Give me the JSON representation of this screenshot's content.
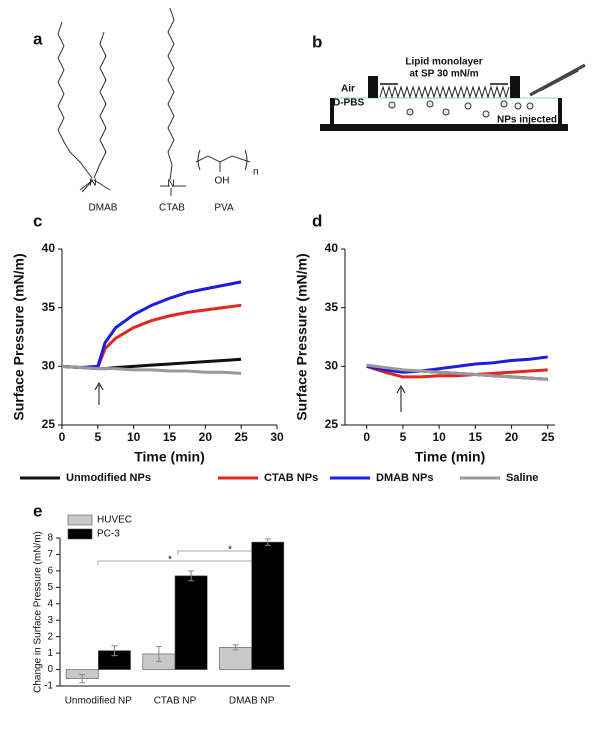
{
  "figure": {
    "panel_labels": [
      "a",
      "b",
      "c",
      "d",
      "e"
    ],
    "structures": [
      "DMAB",
      "CTAB",
      "PVA"
    ],
    "nitrogen": "N",
    "pva_group": "OH",
    "pva_subscript": "n",
    "schematic": {
      "title_lines": [
        "Lipid monolayer",
        "at SP 30 mN/m"
      ],
      "air": "Air",
      "buffer": "D-PBS",
      "injection": "NPs injected"
    }
  },
  "chart_data": [
    {
      "type": "line",
      "xlabel": "Time (min)",
      "ylabel": "Surface Pressure (mN/m)",
      "x": [
        0,
        2.5,
        5,
        6,
        7.5,
        10,
        12.5,
        15,
        17.5,
        20,
        22.5,
        25
      ],
      "xlim": [
        0,
        30
      ],
      "xticks": [
        0,
        5,
        10,
        15,
        20,
        25,
        30
      ],
      "ylim": [
        25,
        40
      ],
      "yticks": [
        25,
        30,
        35,
        40
      ],
      "series": [
        {
          "name": "Unmodified NPs",
          "color": "#111111",
          "values": [
            30,
            29.9,
            29.8,
            29.8,
            29.9,
            30.0,
            30.1,
            30.2,
            30.3,
            30.4,
            30.5,
            30.6
          ]
        },
        {
          "name": "CTAB NPs",
          "color": "#e0261e",
          "values": [
            30,
            29.9,
            29.9,
            31.5,
            32.4,
            33.3,
            33.9,
            34.3,
            34.6,
            34.8,
            35.0,
            35.2
          ]
        },
        {
          "name": "DMAB NPs",
          "color": "#1a1ee0",
          "values": [
            30,
            29.9,
            30.0,
            32.0,
            33.3,
            34.4,
            35.2,
            35.8,
            36.3,
            36.6,
            36.9,
            37.2
          ]
        },
        {
          "name": "Saline",
          "color": "#999999",
          "values": [
            30,
            29.9,
            29.8,
            29.8,
            29.8,
            29.7,
            29.7,
            29.6,
            29.6,
            29.5,
            29.5,
            29.4
          ]
        }
      ]
    },
    {
      "type": "line",
      "xlabel": "Time (min)",
      "ylabel": "Surface Pressure (mN/m)",
      "x": [
        0,
        2.5,
        5,
        7.5,
        10,
        12.5,
        15,
        17.5,
        20,
        22.5,
        25
      ],
      "xlim": [
        -3,
        26
      ],
      "xticks": [
        0,
        5,
        10,
        15,
        20,
        25
      ],
      "ylim": [
        25,
        40
      ],
      "yticks": [
        25,
        30,
        35,
        40
      ],
      "series": [
        {
          "name": "Unmodified NPs",
          "color": "#111111",
          "values": [
            30,
            29.8,
            29.6,
            29.6,
            29.5,
            29.4,
            29.3,
            29.2,
            29.1,
            29.0,
            28.9
          ]
        },
        {
          "name": "CTAB NPs",
          "color": "#e0261e",
          "values": [
            30,
            29.5,
            29.1,
            29.1,
            29.2,
            29.2,
            29.3,
            29.4,
            29.5,
            29.6,
            29.7
          ]
        },
        {
          "name": "DMAB NPs",
          "color": "#1a1ee0",
          "values": [
            30,
            29.7,
            29.5,
            29.6,
            29.8,
            30.0,
            30.2,
            30.3,
            30.5,
            30.6,
            30.8
          ]
        },
        {
          "name": "Saline",
          "color": "#999999",
          "values": [
            30.1,
            29.9,
            29.7,
            29.6,
            29.5,
            29.4,
            29.3,
            29.2,
            29.1,
            29.0,
            28.9
          ]
        }
      ]
    },
    {
      "type": "bar",
      "ylabel": "Change in Surface Pressure (mN/m)",
      "categories": [
        "Unmodified NP",
        "CTAB NP",
        "DMAB NP"
      ],
      "ylim": [
        -1,
        8
      ],
      "yticks": [
        -1,
        0,
        1,
        2,
        3,
        4,
        5,
        6,
        7,
        8
      ],
      "annotations": [
        "*",
        "*"
      ],
      "series": [
        {
          "name": "HUVEC",
          "color": "#c8c8c8",
          "values": [
            -0.55,
            0.95,
            1.35
          ],
          "errors": [
            0.25,
            0.45,
            0.15
          ]
        },
        {
          "name": "PC-3",
          "color": "#000000",
          "values": [
            1.15,
            5.7,
            7.75
          ],
          "errors": [
            0.3,
            0.3,
            0.2
          ]
        }
      ]
    }
  ]
}
